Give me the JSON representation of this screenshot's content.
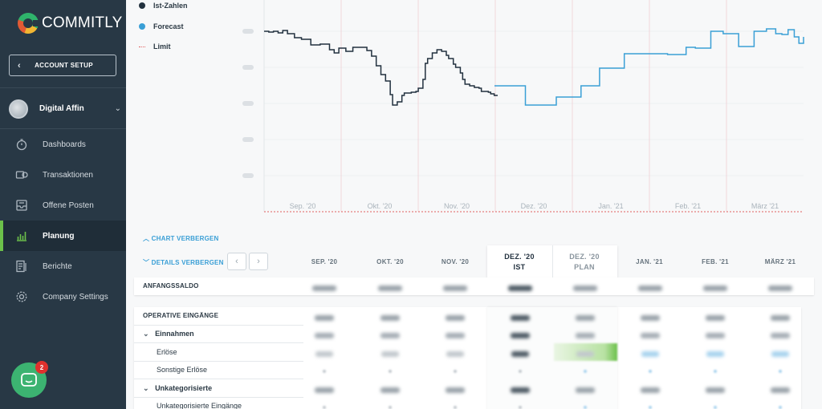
{
  "brand": {
    "name": "COMMITLY"
  },
  "sidebar": {
    "account_setup": "ACCOUNT SETUP",
    "company": "Digital Affin",
    "items": [
      {
        "label": "Dashboards",
        "icon": "stopwatch-icon"
      },
      {
        "label": "Transaktionen",
        "icon": "transactions-icon"
      },
      {
        "label": "Offene Posten",
        "icon": "inbox-icon"
      },
      {
        "label": "Planung",
        "icon": "bar-chart-icon",
        "active": true
      },
      {
        "label": "Berichte",
        "icon": "report-icon"
      },
      {
        "label": "Company Settings",
        "icon": "gear-icon"
      }
    ],
    "chat_badge": "2"
  },
  "legend": [
    {
      "label": "Ist-Zahlen",
      "color": "#22313f"
    },
    {
      "label": "Forecast",
      "color": "#3a9fd6"
    },
    {
      "label": "Limit",
      "color": "#e06060"
    }
  ],
  "chart_data": {
    "type": "line",
    "x_ticks": [
      "Sep. '20",
      "Okt. '20",
      "Nov. '20",
      "Dez. '20",
      "Jan. '21",
      "Feb. '21",
      "März '21"
    ],
    "series": [
      {
        "name": "Ist-Zahlen",
        "color": "#22313f",
        "points": [
          [
            0,
            39
          ],
          [
            0.02,
            40
          ],
          [
            0.04,
            39
          ],
          [
            0.06,
            41
          ],
          [
            0.08,
            38
          ],
          [
            0.1,
            42
          ],
          [
            0.13,
            47
          ],
          [
            0.16,
            49
          ],
          [
            0.2,
            56
          ],
          [
            0.24,
            55
          ],
          [
            0.28,
            62
          ],
          [
            0.3,
            66
          ],
          [
            0.32,
            60
          ],
          [
            0.35,
            64
          ],
          [
            0.38,
            59
          ],
          [
            0.41,
            59
          ],
          [
            0.44,
            63
          ],
          [
            0.46,
            70
          ],
          [
            0.48,
            82
          ],
          [
            0.5,
            93
          ],
          [
            0.52,
            101
          ],
          [
            0.54,
            118
          ],
          [
            0.55,
            131
          ],
          [
            0.57,
            127
          ],
          [
            0.59,
            119
          ],
          [
            0.6,
            116
          ],
          [
            0.63,
            115
          ],
          [
            0.65,
            114
          ],
          [
            0.66,
            110
          ],
          [
            0.68,
            99
          ],
          [
            0.69,
            79
          ],
          [
            0.7,
            73
          ],
          [
            0.72,
            66
          ],
          [
            0.74,
            62
          ],
          [
            0.76,
            64
          ],
          [
            0.78,
            69
          ],
          [
            0.79,
            73
          ],
          [
            0.81,
            80
          ],
          [
            0.82,
            84
          ],
          [
            0.84,
            91
          ],
          [
            0.85,
            99
          ],
          [
            0.86,
            105
          ],
          [
            0.88,
            107
          ],
          [
            0.9,
            109
          ],
          [
            0.92,
            110
          ],
          [
            0.93,
            114
          ],
          [
            0.96,
            115
          ],
          [
            0.97,
            117
          ],
          [
            0.985,
            119
          ],
          [
            1.0,
            119
          ]
        ]
      },
      {
        "name": "Forecast",
        "color": "#3a9fd6",
        "points": [
          [
            0,
            107
          ],
          [
            0.1,
            131
          ],
          [
            0.2,
            121
          ],
          [
            0.28,
            107
          ],
          [
            0.34,
            85
          ],
          [
            0.42,
            67
          ],
          [
            0.56,
            68
          ],
          [
            0.62,
            59
          ],
          [
            0.65,
            60
          ],
          [
            0.7,
            39
          ],
          [
            0.74,
            42
          ],
          [
            0.79,
            58
          ],
          [
            0.84,
            39
          ],
          [
            0.88,
            36
          ],
          [
            0.91,
            42
          ],
          [
            0.93,
            43
          ],
          [
            0.95,
            37
          ],
          [
            0.97,
            46
          ],
          [
            0.985,
            54
          ],
          [
            1.0,
            46
          ]
        ]
      },
      {
        "name": "Limit",
        "color": "#e06060",
        "style": "dotted",
        "y": "Limit"
      }
    ]
  },
  "controls": {
    "chart_toggle": "CHART VERBERGEN",
    "details_toggle": "DETAILS VERBERGEN"
  },
  "columns": [
    {
      "label": "SEP. '20"
    },
    {
      "label": "OKT. '20"
    },
    {
      "label": "NOV. '20"
    },
    {
      "label": "DEZ. '20",
      "sub": "IST"
    },
    {
      "label": "DEZ. '20",
      "sub": "PLAN"
    },
    {
      "label": "JAN. '21"
    },
    {
      "label": "FEB. '21"
    },
    {
      "label": "MÄRZ '21"
    }
  ],
  "table": {
    "opening_balance": "ANFANGSSALDO",
    "section": "OPERATIVE EINGÄNGE",
    "rows": [
      {
        "label": "Einnahmen",
        "type": "group"
      },
      {
        "label": "Erlöse",
        "type": "item"
      },
      {
        "label": "Sonstige Erlöse",
        "type": "item"
      },
      {
        "label": "Unkategorisierte",
        "type": "group"
      },
      {
        "label": "Unkategorisierte Eingänge",
        "type": "item"
      }
    ]
  }
}
